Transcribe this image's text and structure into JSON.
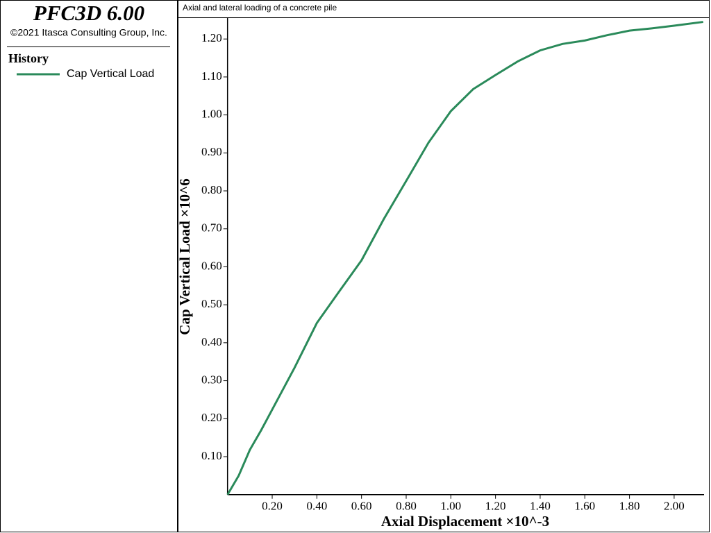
{
  "app": {
    "title": "PFC3D 6.00",
    "copyright": "©2021 Itasca Consulting Group, Inc."
  },
  "chart_data": {
    "type": "line",
    "title": "Axial and lateral loading of a concrete pile",
    "legend_title": "History",
    "x_label": "Axial Displacement ×10^-3",
    "y_label": "Cap Vertical Load ×10^6",
    "x": [
      0,
      0.05,
      0.1,
      0.15,
      0.2,
      0.3,
      0.4,
      0.5,
      0.6,
      0.7,
      0.8,
      0.9,
      1.0,
      1.1,
      1.2,
      1.3,
      1.4,
      1.5,
      1.6,
      1.7,
      1.8,
      1.9,
      2.0,
      2.13
    ],
    "series": [
      {
        "name": "Cap Vertical Load",
        "color": "#2a8a5a",
        "values": [
          0,
          0.05,
          0.118,
          0.169,
          0.224,
          0.334,
          0.452,
          0.535,
          0.617,
          0.726,
          0.826,
          0.927,
          1.01,
          1.068,
          1.105,
          1.141,
          1.17,
          1.187,
          1.196,
          1.21,
          1.222,
          1.228,
          1.235,
          1.245
        ]
      }
    ],
    "xlim": [
      0,
      2.134
    ],
    "ylim": [
      0,
      1.257
    ],
    "xticks": [
      {
        "value": 0.2,
        "label": "0.20"
      },
      {
        "value": 0.4,
        "label": "0.40"
      },
      {
        "value": 0.6,
        "label": "0.60"
      },
      {
        "value": 0.8,
        "label": "0.80"
      },
      {
        "value": 1.0,
        "label": "1.00"
      },
      {
        "value": 1.2,
        "label": "1.20"
      },
      {
        "value": 1.4,
        "label": "1.40"
      },
      {
        "value": 1.6,
        "label": "1.60"
      },
      {
        "value": 1.8,
        "label": "1.80"
      },
      {
        "value": 2.0,
        "label": "2.00"
      }
    ],
    "yticks": [
      {
        "value": 0.1,
        "label": "0.10"
      },
      {
        "value": 0.2,
        "label": "0.20"
      },
      {
        "value": 0.3,
        "label": "0.30"
      },
      {
        "value": 0.4,
        "label": "0.40"
      },
      {
        "value": 0.5,
        "label": "0.50"
      },
      {
        "value": 0.6,
        "label": "0.60"
      },
      {
        "value": 0.7,
        "label": "0.70"
      },
      {
        "value": 0.8,
        "label": "0.80"
      },
      {
        "value": 0.9,
        "label": "0.90"
      },
      {
        "value": 1.0,
        "label": "1.00"
      },
      {
        "value": 1.1,
        "label": "1.10"
      },
      {
        "value": 1.2,
        "label": "1.20"
      }
    ]
  }
}
